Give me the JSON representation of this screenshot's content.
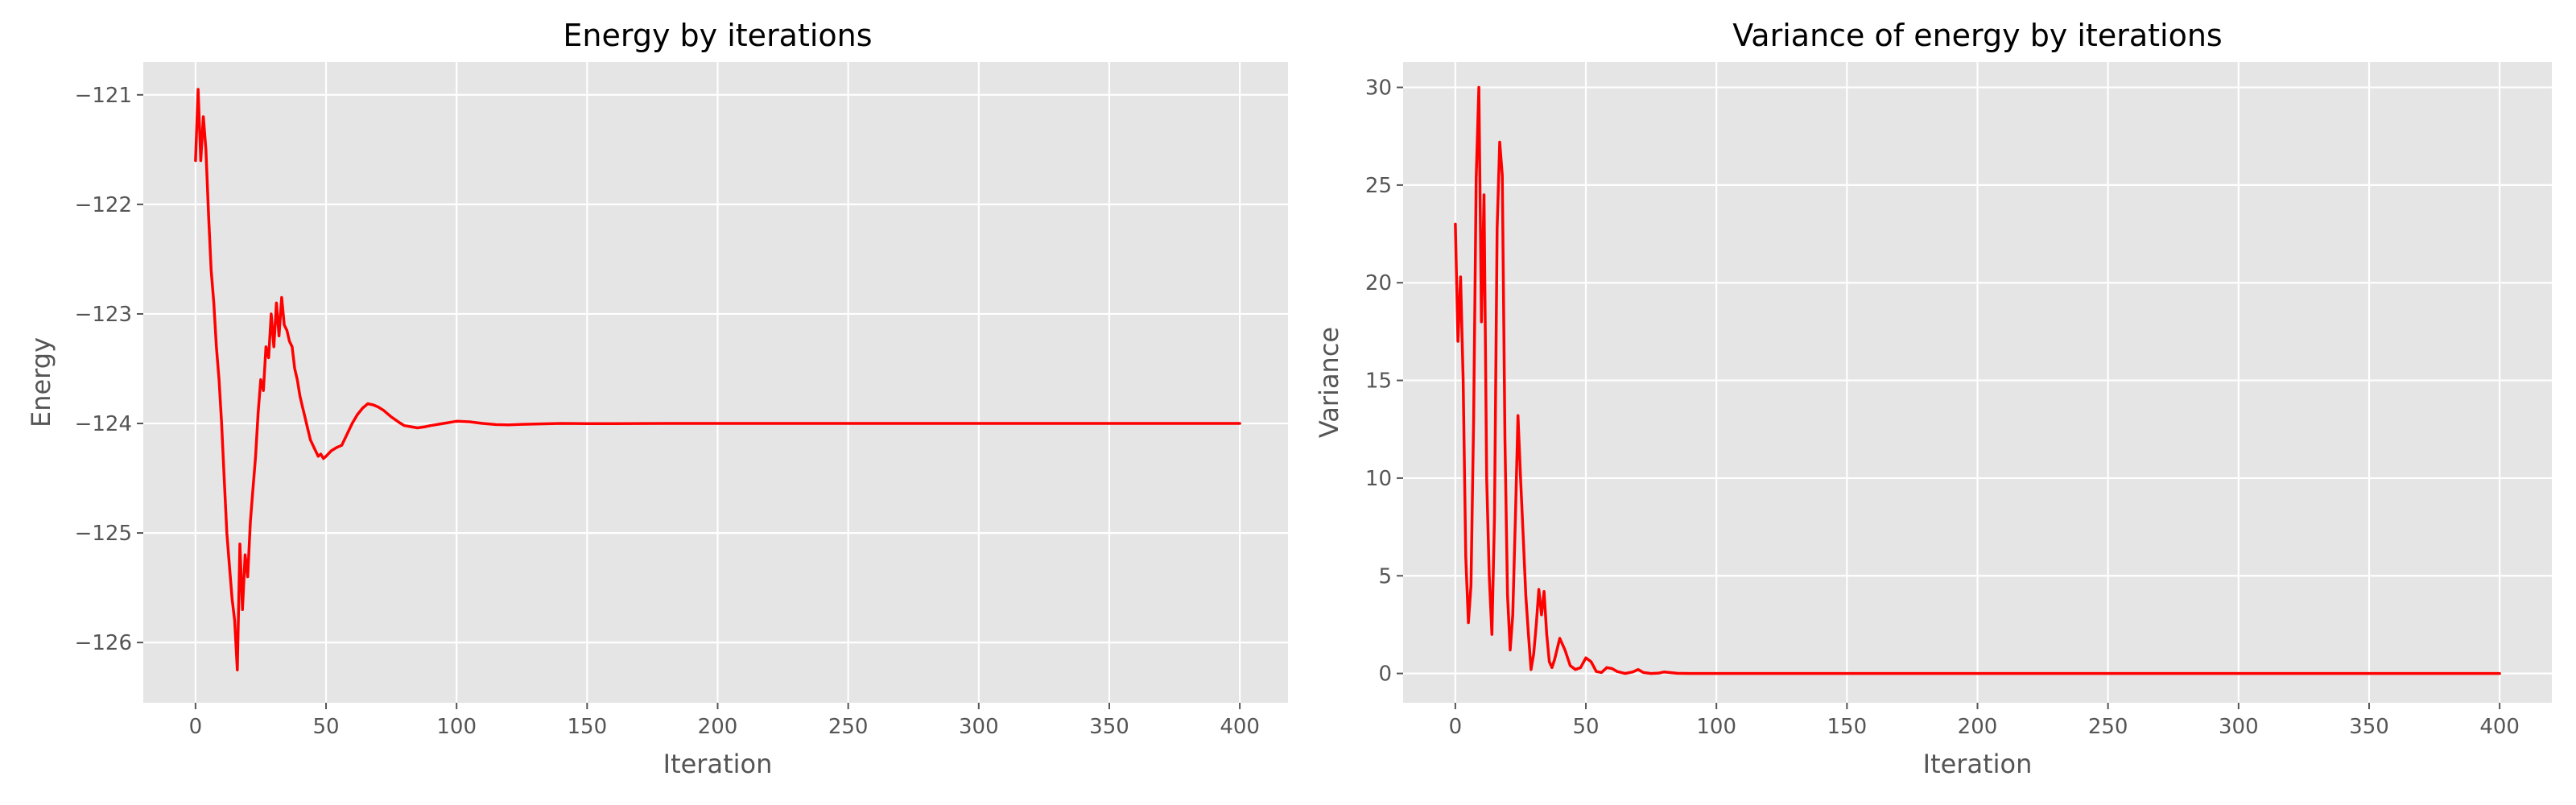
{
  "chart_data": [
    {
      "type": "line",
      "title": "Energy by iterations",
      "xlabel": "Iteration",
      "ylabel": "Energy",
      "xlim": [
        -20,
        420
      ],
      "ylim": [
        -126.55,
        -120.7
      ],
      "xticks": [
        0,
        50,
        100,
        150,
        200,
        250,
        300,
        350,
        400
      ],
      "yticks": [
        -126,
        -125,
        -124,
        -123,
        -122,
        -121
      ],
      "grid": true,
      "series_color": "#ff0000",
      "series": [
        {
          "x": [
            0,
            1,
            2,
            3,
            4,
            5,
            6,
            7,
            8,
            9,
            10,
            11,
            12,
            13,
            14,
            15,
            16,
            17,
            18,
            19,
            20,
            21,
            22,
            23,
            24,
            25,
            26,
            27,
            28,
            29,
            30,
            31,
            32,
            33,
            34,
            35,
            36,
            37,
            38,
            39,
            40,
            41,
            42,
            43,
            44,
            45,
            46,
            47,
            48,
            49,
            50,
            52,
            54,
            56,
            58,
            60,
            62,
            64,
            66,
            68,
            70,
            72,
            75,
            78,
            80,
            85,
            88,
            90,
            95,
            100,
            105,
            110,
            115,
            120,
            125,
            130,
            140,
            150,
            160,
            180,
            200,
            250,
            300,
            350,
            400
          ],
          "values": [
            -121.6,
            -120.95,
            -121.6,
            -121.2,
            -121.5,
            -122.1,
            -122.6,
            -122.9,
            -123.3,
            -123.6,
            -124.0,
            -124.5,
            -125.0,
            -125.3,
            -125.6,
            -125.8,
            -126.25,
            -125.1,
            -125.7,
            -125.2,
            -125.4,
            -124.9,
            -124.6,
            -124.3,
            -123.9,
            -123.6,
            -123.7,
            -123.3,
            -123.4,
            -123.0,
            -123.3,
            -122.9,
            -123.2,
            -122.85,
            -123.1,
            -123.15,
            -123.25,
            -123.3,
            -123.5,
            -123.6,
            -123.75,
            -123.85,
            -123.95,
            -124.05,
            -124.15,
            -124.2,
            -124.25,
            -124.3,
            -124.28,
            -124.32,
            -124.3,
            -124.25,
            -124.22,
            -124.2,
            -124.1,
            -124.0,
            -123.92,
            -123.86,
            -123.82,
            -123.83,
            -123.85,
            -123.88,
            -123.94,
            -123.99,
            -124.02,
            -124.04,
            -124.03,
            -124.02,
            -124.0,
            -123.98,
            -123.985,
            -124.0,
            -124.01,
            -124.012,
            -124.008,
            -124.005,
            -124.0,
            -124.002,
            -124.001,
            -124.0,
            -124.0,
            -124.0,
            -124.0,
            -124.0,
            -124.0
          ]
        }
      ]
    },
    {
      "type": "line",
      "title": "Variance of energy by iterations",
      "xlabel": "Iteration",
      "ylabel": "Variance",
      "xlim": [
        -20,
        420
      ],
      "ylim": [
        -1.5,
        31.3
      ],
      "xticks": [
        0,
        50,
        100,
        150,
        200,
        250,
        300,
        350,
        400
      ],
      "yticks": [
        0,
        5,
        10,
        15,
        20,
        25,
        30
      ],
      "grid": true,
      "series_color": "#ff0000",
      "series": [
        {
          "x": [
            0,
            1,
            2,
            3,
            4,
            5,
            6,
            7,
            8,
            9,
            10,
            11,
            12,
            13,
            14,
            15,
            16,
            17,
            18,
            19,
            20,
            21,
            22,
            23,
            24,
            25,
            26,
            27,
            28,
            29,
            30,
            31,
            32,
            33,
            34,
            35,
            36,
            37,
            38,
            40,
            42,
            44,
            46,
            48,
            50,
            52,
            54,
            56,
            58,
            60,
            62,
            65,
            68,
            70,
            72,
            75,
            78,
            80,
            85,
            90,
            100,
            110,
            150,
            200,
            250,
            300,
            350,
            400
          ],
          "values": [
            23,
            17,
            20.3,
            15,
            6,
            2.6,
            4.5,
            13,
            25.4,
            30,
            18,
            24.5,
            10,
            5,
            2,
            8,
            22.8,
            27.2,
            25.5,
            12,
            4,
            1.2,
            3,
            8,
            13.2,
            10,
            7,
            4,
            2,
            0.2,
            1,
            2.5,
            4.3,
            3,
            4.2,
            2,
            0.6,
            0.3,
            0.7,
            1.8,
            1.2,
            0.4,
            0.2,
            0.3,
            0.8,
            0.6,
            0.1,
            0.05,
            0.3,
            0.25,
            0.1,
            0,
            0.08,
            0.2,
            0.05,
            0,
            0.02,
            0.08,
            0.01,
            0,
            0,
            0,
            0,
            0,
            0,
            0,
            0,
            0
          ]
        }
      ]
    }
  ]
}
